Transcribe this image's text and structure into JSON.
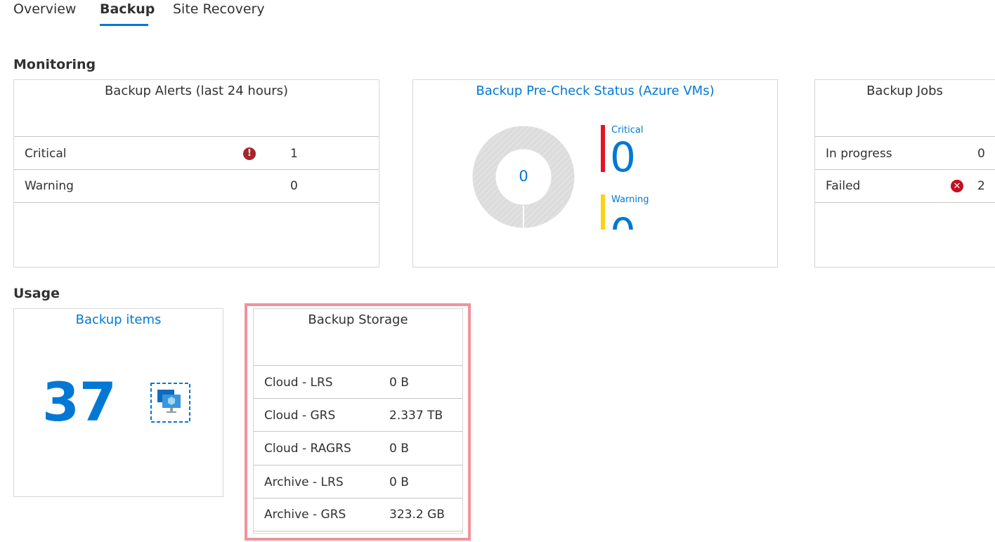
{
  "tabs": [
    {
      "label": "Overview"
    },
    {
      "label": "Backup"
    },
    {
      "label": "Site Recovery"
    }
  ],
  "monitoring": {
    "title": "Monitoring",
    "alerts": {
      "title": "Backup Alerts (last 24 hours)",
      "rows": [
        {
          "label": "Critical",
          "value": "1",
          "icon": "error-icon"
        },
        {
          "label": "Warning",
          "value": "0"
        }
      ]
    },
    "precheck": {
      "title": "Backup Pre-Check Status (Azure VMs)",
      "donut_center": "0",
      "critical_label": "Critical",
      "critical_value": "0",
      "warning_label": "Warning",
      "warning_value": "0",
      "critical_color": "#e81123",
      "warning_color": "#fcd116"
    },
    "jobs": {
      "title": "Backup Jobs",
      "rows": [
        {
          "label": "In progress",
          "value": "0"
        },
        {
          "label": "Failed",
          "value": "2",
          "icon": "failed-x-icon"
        }
      ]
    }
  },
  "usage": {
    "title": "Usage",
    "items": {
      "title": "Backup items",
      "count": "37",
      "icon": "virtual-machines-icon"
    },
    "storage": {
      "title": "Backup Storage",
      "rows": [
        {
          "label": "Cloud - LRS",
          "value": "0 B"
        },
        {
          "label": "Cloud - GRS",
          "value": "2.337 TB"
        },
        {
          "label": "Cloud - RAGRS",
          "value": "0 B"
        },
        {
          "label": "Archive - LRS",
          "value": "0 B"
        },
        {
          "label": "Archive - GRS",
          "value": "323.2 GB"
        }
      ],
      "highlight_color": "#f0939a"
    }
  }
}
